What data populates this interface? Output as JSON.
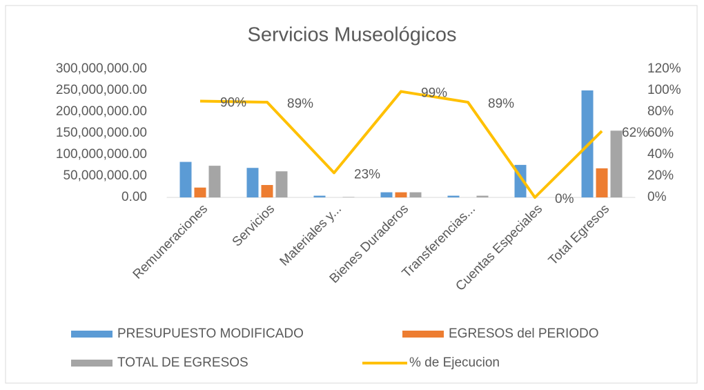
{
  "chart_data": {
    "type": "bar",
    "title": "Servicios Museológicos",
    "categories": [
      "Remuneraciones",
      "Servicios",
      "Materiales y...",
      "Bienes Duraderos",
      "Transferencias...",
      "Cuentas Especiales",
      "Total Egresos"
    ],
    "series": [
      {
        "name": "PRESUPUESTO MODIFICADO",
        "color": "#5b9bd5",
        "values": [
          83000000,
          69000000,
          4000000,
          12000000,
          4000000,
          76000000,
          250000000
        ]
      },
      {
        "name": "EGRESOS del PERIODO",
        "color": "#ed7d31",
        "values": [
          23000000,
          29000000,
          0,
          12000000,
          0,
          0,
          68000000
        ]
      },
      {
        "name": "TOTAL DE EGRESOS",
        "color": "#a5a5a5",
        "values": [
          74000000,
          61000000,
          1000000,
          12000000,
          4000000,
          0,
          156000000
        ]
      },
      {
        "name": "% de Ejecucion",
        "color": "#ffc000",
        "type": "line",
        "axis": "y2",
        "values": [
          90,
          89,
          23,
          99,
          89,
          0,
          62
        ],
        "value_labels": [
          "90%",
          "89%",
          "23%",
          "99%",
          "89%",
          "0%",
          "62%"
        ]
      }
    ],
    "ylim": [
      0,
      300000000
    ],
    "yticks": [
      {
        "value": 0,
        "label": "0.00"
      },
      {
        "value": 50000000,
        "label": "50,000,000.00"
      },
      {
        "value": 100000000,
        "label": "100,000,000.00"
      },
      {
        "value": 150000000,
        "label": "150,000,000.00"
      },
      {
        "value": 200000000,
        "label": "200,000,000.00"
      },
      {
        "value": 250000000,
        "label": "250,000,000.00"
      },
      {
        "value": 300000000,
        "label": "300,000,000.00"
      }
    ],
    "y2lim": [
      0,
      120
    ],
    "y2ticks": [
      {
        "value": 0,
        "label": "0%"
      },
      {
        "value": 20,
        "label": "20%"
      },
      {
        "value": 40,
        "label": "40%"
      },
      {
        "value": 60,
        "label": "60%"
      },
      {
        "value": 80,
        "label": "80%"
      },
      {
        "value": 100,
        "label": "100%"
      },
      {
        "value": 120,
        "label": "120%"
      }
    ],
    "grid": false,
    "legend": "bottom"
  }
}
